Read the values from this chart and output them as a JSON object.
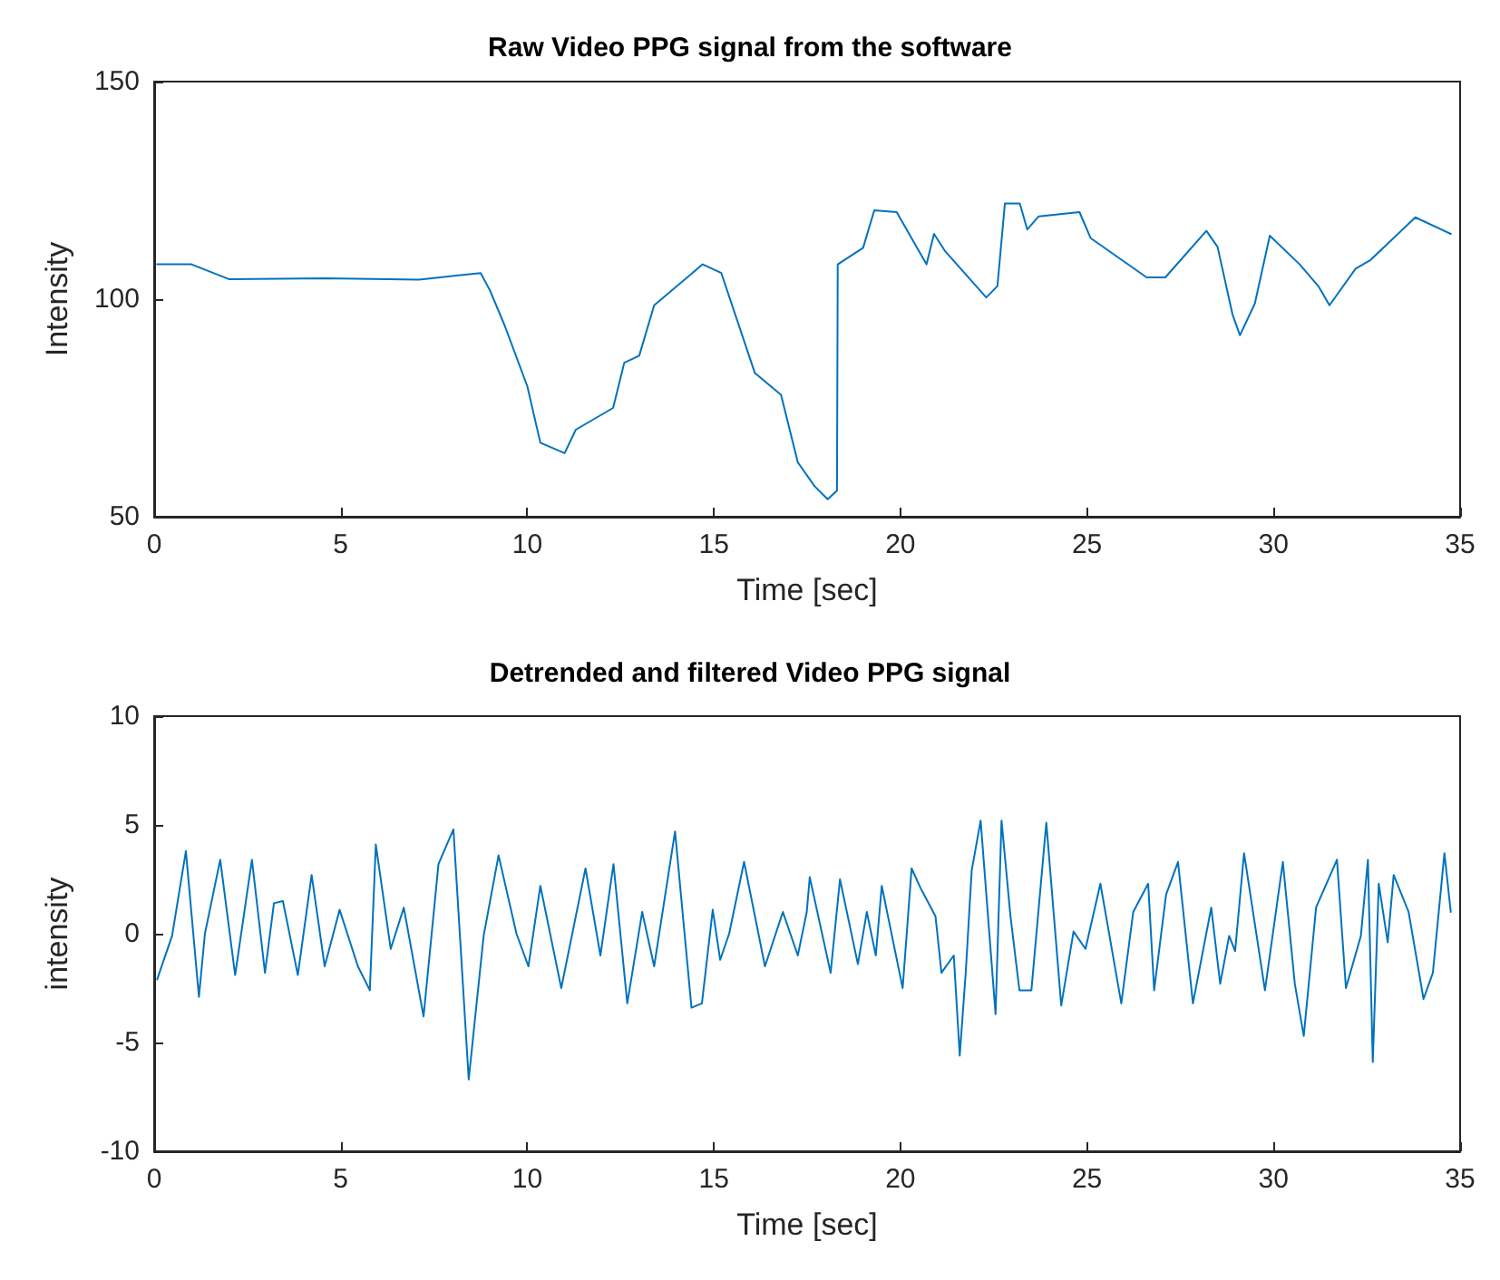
{
  "chart_data": [
    {
      "type": "line",
      "title": "Raw Video PPG signal from the software",
      "xlabel": "Time [sec]",
      "ylabel": "Intensity",
      "xlim": [
        0,
        35
      ],
      "xticks": [
        0,
        5,
        10,
        15,
        20,
        25,
        30,
        35
      ],
      "ylim": [
        50,
        150
      ],
      "yticks": [
        50,
        100,
        150
      ],
      "grid": false,
      "marker": "none",
      "line_style": "solid",
      "series": [
        {
          "color": "#0072bd",
          "x": [
            0.08,
            1.0,
            2.0,
            4.6,
            7.1,
            8.75,
            9.0,
            9.4,
            10.0,
            10.35,
            11.0,
            11.3,
            12.3,
            12.6,
            13.0,
            13.4,
            14.7,
            15.2,
            16.1,
            16.8,
            17.25,
            17.7,
            18.05,
            18.3,
            18.32,
            19.0,
            19.3,
            19.9,
            20.7,
            20.9,
            21.2,
            22.3,
            22.6,
            22.8,
            23.2,
            23.4,
            23.7,
            24.8,
            25.1,
            26.6,
            27.1,
            28.2,
            28.5,
            28.9,
            29.1,
            29.5,
            29.9,
            30.7,
            31.2,
            31.5,
            32.2,
            32.6,
            33.8,
            34.75
          ],
          "values": [
            108,
            108,
            104.6,
            104.8,
            104.5,
            106,
            102,
            93.8,
            80,
            67,
            64.6,
            70,
            75,
            85.4,
            87,
            98.6,
            108,
            106,
            83,
            78,
            62.5,
            57,
            54,
            56,
            108,
            111.8,
            120.4,
            120,
            108,
            115,
            111,
            100.4,
            103,
            122,
            122,
            116,
            119,
            120,
            114,
            105,
            105,
            115.7,
            112,
            96.5,
            91.7,
            99,
            114.6,
            108,
            103,
            98.6,
            107,
            109,
            118.8,
            115
          ]
        }
      ]
    },
    {
      "type": "line",
      "title": "Detrended and filtered Video PPG signal",
      "xlabel": "Time [sec]",
      "ylabel": "intensity",
      "xlim": [
        0,
        35
      ],
      "xticks": [
        0,
        5,
        10,
        15,
        20,
        25,
        30,
        35
      ],
      "ylim": [
        -10,
        10
      ],
      "yticks": [
        -10,
        -5,
        0,
        5,
        10
      ],
      "grid": false,
      "marker": "none",
      "line_style": "solid",
      "series": [
        {
          "color": "#0072bd",
          "x": [
            0.08,
            0.48,
            0.85,
            1.2,
            1.36,
            1.77,
            2.17,
            2.62,
            2.97,
            3.21,
            3.45,
            3.85,
            4.22,
            4.57,
            4.97,
            5.46,
            5.78,
            5.94,
            6.34,
            6.69,
            7.22,
            7.62,
            8.02,
            8.43,
            8.83,
            9.23,
            9.71,
            10.03,
            10.35,
            10.91,
            11.56,
            11.96,
            12.31,
            12.68,
            13.08,
            13.4,
            13.96,
            14.4,
            14.68,
            14.97,
            15.17,
            15.41,
            15.81,
            16.37,
            16.85,
            17.25,
            17.49,
            17.57,
            18.13,
            18.38,
            18.86,
            19.1,
            19.34,
            19.5,
            20.06,
            20.3,
            20.54,
            20.94,
            21.1,
            21.43,
            21.59,
            21.75,
            21.91,
            22.15,
            22.55,
            22.71,
            22.95,
            23.19,
            23.51,
            23.91,
            24.31,
            24.64,
            24.96,
            25.36,
            25.92,
            26.24,
            26.64,
            26.8,
            27.12,
            27.44,
            27.84,
            28.33,
            28.57,
            28.81,
            28.97,
            29.21,
            29.77,
            30.25,
            30.57,
            30.81,
            31.14,
            31.7,
            31.94,
            32.34,
            32.53,
            32.66,
            32.82,
            33.06,
            33.22,
            33.62,
            34.02,
            34.27,
            34.58,
            34.75
          ],
          "values": [
            -2.1,
            -0.1,
            3.8,
            -2.9,
            0,
            3.4,
            -1.9,
            3.4,
            -1.8,
            1.4,
            1.5,
            -1.9,
            2.7,
            -1.5,
            1.1,
            -1.5,
            -2.6,
            4.1,
            -0.7,
            1.2,
            -3.8,
            3.2,
            4.8,
            -6.7,
            -0.1,
            3.6,
            0,
            -1.5,
            2.2,
            -2.5,
            3.0,
            -1,
            3.2,
            -3.2,
            1.0,
            -1.5,
            4.7,
            -3.4,
            -3.2,
            1.1,
            -1.2,
            0,
            3.3,
            -1.5,
            1.0,
            -1.0,
            1.0,
            2.6,
            -1.8,
            2.5,
            -1.4,
            1.0,
            -1,
            2.2,
            -2.5,
            3.0,
            2.1,
            0.8,
            -1.8,
            -1,
            -5.6,
            -1.8,
            2.9,
            5.2,
            -3.7,
            5.2,
            0.8,
            -2.6,
            -2.6,
            5.1,
            -3.3,
            0.1,
            -0.7,
            2.3,
            -3.2,
            1.0,
            2.3,
            -2.6,
            1.8,
            3.3,
            -3.2,
            1.2,
            -2.3,
            -0.1,
            -0.8,
            3.7,
            -2.6,
            3.3,
            -2.3,
            -4.7,
            1.2,
            3.4,
            -2.5,
            -0.1,
            3.4,
            -5.9,
            2.3,
            -0.4,
            2.7,
            1.0,
            -3.0,
            -1.8,
            3.7,
            1.0
          ]
        }
      ]
    }
  ]
}
